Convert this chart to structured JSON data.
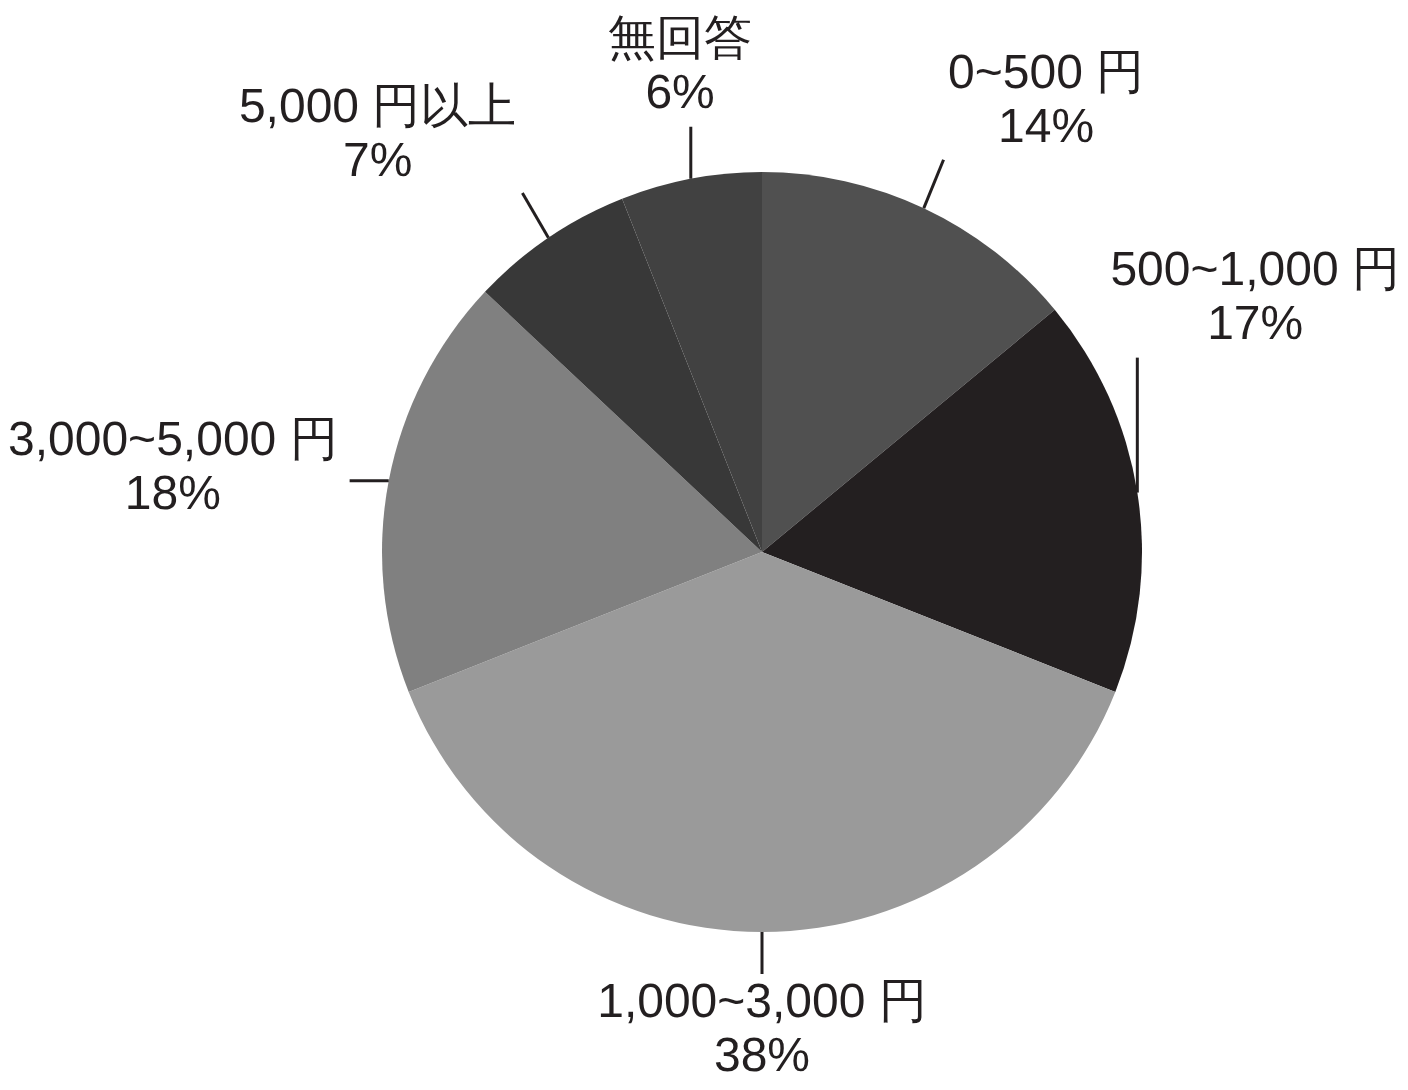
{
  "chart_data": {
    "type": "pie",
    "categories": [
      "0~500 円",
      "500~1,000 円",
      "1,000~3,000 円",
      "3,000~5,000 円",
      "5,000 円以上",
      "無回答"
    ],
    "values": [
      14,
      17,
      38,
      18,
      7,
      6
    ],
    "value_labels": [
      "14%",
      "17%",
      "38%",
      "18%",
      "7%",
      "6%"
    ],
    "colors": [
      "#505050",
      "#231f20",
      "#9a9a9a",
      "#808080",
      "#383838",
      "#414141"
    ]
  }
}
